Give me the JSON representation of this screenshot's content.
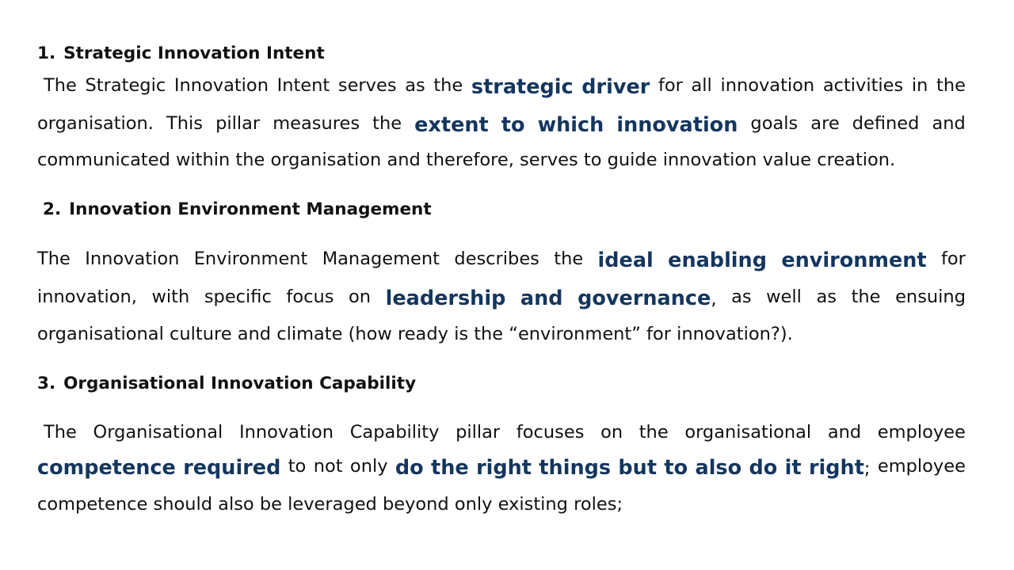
{
  "sections": [
    {
      "number": "1.",
      "title": "Strategic Innovation Intent",
      "lines": [
        [
          " The Strategic Innovation Intent serves as the ",
          {
            "em": "strategic driver"
          },
          " for all innovation activities in the"
        ],
        [
          "organisation. This pillar measures the ",
          {
            "em": "extent to which innovation"
          },
          " goals are defined and"
        ],
        [
          "communicated within the organisation and therefore, serves to guide innovation value creation."
        ]
      ]
    },
    {
      "number": "2.",
      "title": "Innovation Environment Management",
      "lines": [
        [
          "The Innovation Environment Management describes the ",
          {
            "em": "ideal enabling environment"
          },
          " for"
        ],
        [
          "innovation, with specific focus on ",
          {
            "em": "leadership and governance"
          },
          ", as well as the ensuing"
        ],
        [
          "organisational culture and climate (how ready is the “environment” for innovation?)."
        ]
      ]
    },
    {
      "number": "3.",
      "title": "Organisational Innovation Capability",
      "lines": [
        [
          " The Organisational Innovation Capability pillar focuses on the organisational and employee"
        ],
        [
          {
            "em": "competence required"
          },
          " to not only ",
          {
            "em": "do the right things but to also do it right"
          },
          "; employee"
        ],
        [
          "competence should also be leveraged beyond only existing roles;"
        ]
      ]
    }
  ]
}
